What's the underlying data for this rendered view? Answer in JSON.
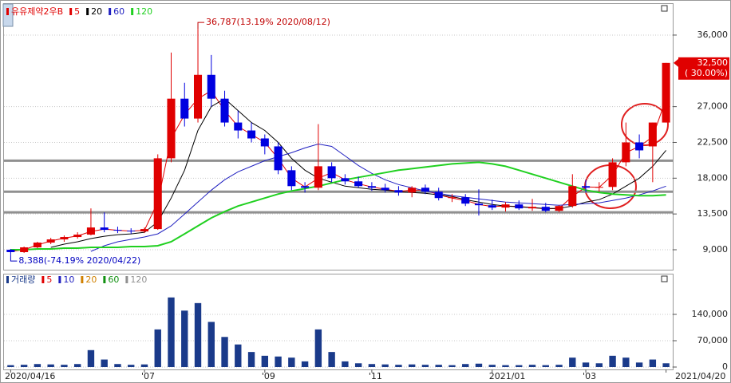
{
  "chart_data": [
    {
      "type": "candlestick",
      "title": "유유제약2우B",
      "categories": [
        "2020/04/16",
        null,
        null,
        null,
        null,
        null,
        null,
        null,
        null,
        null,
        "'07",
        null,
        null,
        null,
        null,
        null,
        null,
        null,
        null,
        "'09",
        null,
        null,
        null,
        null,
        null,
        null,
        null,
        "'11",
        null,
        null,
        null,
        null,
        null,
        null,
        null,
        null,
        "2021/01",
        null,
        null,
        null,
        null,
        null,
        null,
        "'03",
        null,
        null,
        null,
        null,
        null,
        "2021/04/20"
      ],
      "open": [
        9000,
        8700,
        9300,
        9900,
        10300,
        10600,
        10900,
        11800,
        11500,
        11400,
        11300,
        11600,
        20500,
        28000,
        25500,
        31000,
        28000,
        25000,
        24000,
        23000,
        22000,
        19000,
        17000,
        16800,
        19500,
        18000,
        17600,
        17000,
        16800,
        16500,
        16200,
        16800,
        16300,
        15500,
        15600,
        14800,
        14600,
        14300,
        14700,
        14200,
        14400,
        13900,
        14500,
        17000,
        16800,
        16900,
        20000,
        22500,
        22000,
        25000
      ],
      "high": [
        9100,
        9400,
        10000,
        10500,
        10800,
        11200,
        14200,
        13700,
        11900,
        11700,
        11800,
        21000,
        33800,
        30000,
        36787,
        33500,
        29000,
        26500,
        25000,
        23500,
        22500,
        19500,
        17500,
        24800,
        20000,
        18500,
        18200,
        17500,
        17300,
        17000,
        17000,
        17200,
        16800,
        16000,
        16000,
        16600,
        15300,
        15000,
        15200,
        15400,
        14900,
        14600,
        18500,
        17800,
        17500,
        20500,
        25000,
        23500,
        25000,
        32500
      ],
      "low": [
        8388,
        8600,
        9200,
        9700,
        10000,
        10400,
        10800,
        11200,
        11100,
        11000,
        11100,
        11500,
        20000,
        24500,
        25000,
        27000,
        24500,
        23000,
        22500,
        21000,
        18500,
        16500,
        16200,
        16500,
        17500,
        17200,
        16800,
        16400,
        16200,
        15800,
        15600,
        16000,
        15200,
        15000,
        14500,
        13300,
        14000,
        13800,
        14000,
        13900,
        13700,
        13700,
        14300,
        16200,
        16300,
        16500,
        19500,
        20500,
        17500,
        25000
      ],
      "close": [
        8700,
        9300,
        9900,
        10300,
        10600,
        10900,
        11800,
        11500,
        11400,
        11300,
        11600,
        20500,
        28000,
        25500,
        31000,
        28000,
        25000,
        24000,
        23000,
        22000,
        19000,
        17000,
        16800,
        19500,
        18000,
        17600,
        17000,
        16800,
        16500,
        16200,
        16800,
        16300,
        15500,
        15600,
        14800,
        14600,
        14300,
        14700,
        14200,
        14400,
        13900,
        14500,
        17000,
        16800,
        16900,
        20000,
        22500,
        21500,
        25000,
        32500
      ],
      "up_color": "#e00000",
      "down_color": "#0000e0",
      "series": [
        {
          "name": "5",
          "color": "#e00000",
          "values": [
            8800,
            9000,
            9600,
            10100,
            10450,
            10750,
            11300,
            11600,
            11450,
            11350,
            11450,
            15000,
            23000,
            26000,
            28000,
            29000,
            26500,
            24500,
            23500,
            22500,
            20500,
            18000,
            16900,
            18000,
            18700,
            17800,
            17300,
            16900,
            16600,
            16350,
            16500,
            16500,
            15900,
            15500,
            15200,
            14700,
            14450,
            14500,
            14450,
            14300,
            14150,
            14200,
            15700,
            16900,
            16850,
            18400,
            21200,
            22000,
            23200,
            28000
          ]
        },
        {
          "name": "20",
          "color": "#000000",
          "values": [
            null,
            null,
            null,
            9300,
            9700,
            10000,
            10400,
            10700,
            10900,
            11000,
            11200,
            12500,
            15500,
            19000,
            24000,
            27000,
            28000,
            26500,
            25000,
            24000,
            22500,
            20500,
            19000,
            18000,
            17500,
            17000,
            16800,
            16600,
            16500,
            16300,
            16200,
            16100,
            15900,
            15700,
            15300,
            15000,
            14700,
            14500,
            14400,
            14300,
            14200,
            14200,
            14500,
            15000,
            15300,
            16000,
            17000,
            18000,
            19500,
            21500
          ]
        },
        {
          "name": "60",
          "color": "#2020c0",
          "values": [
            null,
            null,
            null,
            null,
            null,
            null,
            8800,
            9500,
            10000,
            10300,
            10600,
            11000,
            12000,
            13500,
            15000,
            16500,
            17800,
            18800,
            19500,
            20200,
            20700,
            21200,
            21800,
            22300,
            22000,
            20800,
            19600,
            18600,
            17800,
            17200,
            16800,
            16400,
            16100,
            15800,
            15600,
            15400,
            15200,
            15000,
            14900,
            14800,
            14700,
            14600,
            14700,
            14800,
            14900,
            15200,
            15500,
            15900,
            16400,
            17000
          ]
        },
        {
          "name": "120",
          "color": "#20d020",
          "values": [
            9000,
            9000,
            9100,
            9100,
            9200,
            9200,
            9300,
            9300,
            9300,
            9400,
            9400,
            9500,
            10000,
            11000,
            12000,
            13000,
            13800,
            14500,
            15000,
            15500,
            16000,
            16400,
            16700,
            17000,
            17400,
            17800,
            18100,
            18400,
            18700,
            19000,
            19200,
            19400,
            19600,
            19800,
            19900,
            20000,
            19800,
            19500,
            19000,
            18500,
            18000,
            17500,
            17000,
            16500,
            16200,
            16000,
            15900,
            15800,
            15800,
            15900
          ]
        }
      ],
      "ylim": [
        6490,
        39910
      ],
      "yticks": [
        {
          "value": 9000,
          "label": "9,000"
        },
        {
          "value": 13500,
          "label": "13,500"
        },
        {
          "value": 18000,
          "label": "18,000"
        },
        {
          "value": 22500,
          "label": "22,500"
        },
        {
          "value": 27000,
          "label": "27,000"
        },
        {
          "value": 36000,
          "label": "36,000"
        }
      ],
      "hlines": [
        20200,
        16300,
        13700
      ],
      "annotations": {
        "high": "36,787(13.19% 2020/08/12)",
        "low": "8,388(-74.19% 2020/04/22)"
      },
      "price_label": "32,500",
      "change_label": "( 30.00%)"
    },
    {
      "type": "bar",
      "title": "거래량",
      "color": "#1a3a8a",
      "values": [
        5000,
        6000,
        8000,
        7000,
        6000,
        8000,
        45000,
        20000,
        8000,
        6000,
        7000,
        100000,
        185000,
        150000,
        170000,
        120000,
        80000,
        60000,
        40000,
        30000,
        28000,
        25000,
        15000,
        100000,
        40000,
        15000,
        10000,
        8000,
        7000,
        6000,
        7000,
        6000,
        6000,
        5000,
        8000,
        9000,
        6000,
        5000,
        5000,
        6000,
        5000,
        6000,
        25000,
        12000,
        10000,
        30000,
        25000,
        12000,
        20000,
        10000
      ],
      "ma_legend": [
        {
          "name": "5",
          "color": "#e00000"
        },
        {
          "name": "10",
          "color": "#2020c0"
        },
        {
          "name": "20",
          "color": "#d08000"
        },
        {
          "name": "60",
          "color": "#109010"
        },
        {
          "name": "120",
          "color": "#909090"
        }
      ],
      "ylim": [
        0,
        222700
      ],
      "yticks": [
        0,
        {
          "value": 70000,
          "label": "70,000"
        },
        {
          "value": 140000,
          "label": "140,000"
        }
      ]
    }
  ]
}
